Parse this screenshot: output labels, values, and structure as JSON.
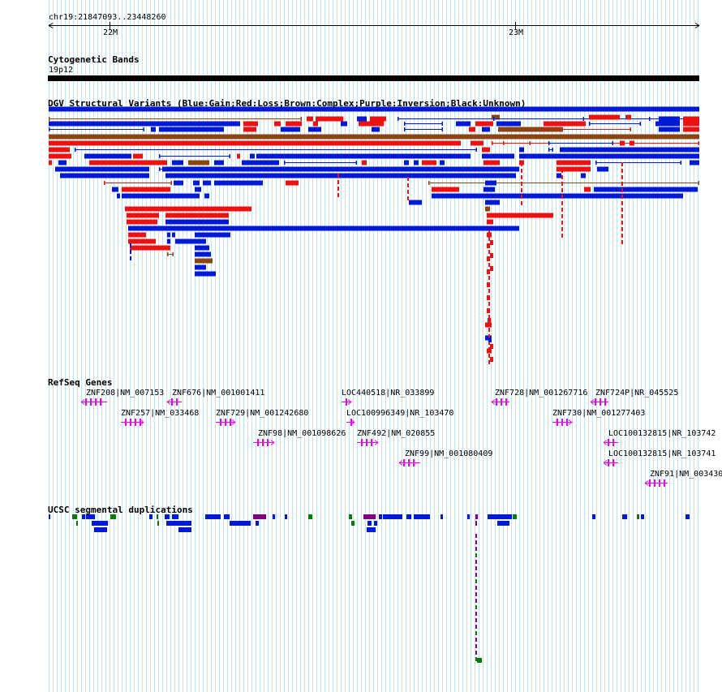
{
  "ruler": {
    "position": "chr19:21847093..23448260",
    "ticks": [
      "22M",
      "23M"
    ]
  },
  "tracks": {
    "cytoband": {
      "title": "Cytogenetic Bands",
      "band": "19p12"
    },
    "dgv": {
      "title": "DGV Structural Variants (Blue:Gain;Red:Loss;Brown:Complex;Purple:Inversion;Black:Unknown)"
    },
    "refseq": {
      "title": "RefSeq Genes",
      "genes": [
        "ZNF208|NM_007153",
        "ZNF676|NM_001001411",
        "LOC440518|NR_033899",
        "ZNF728|NM_001267716",
        "ZNF724P|NR_045525",
        "ZNF257|NM_033468",
        "ZNF729|NM_001242680",
        "LOC100996349|NR_103470",
        "ZNF730|NM_001277403",
        "ZNF98|NM_001098626",
        "ZNF492|NM_020855",
        "LOC100132815|NR_103742",
        "ZNF99|NM_001080409",
        "LOC100132815|NR_103741",
        "ZNF91|NM_003430"
      ]
    },
    "segdups": {
      "title": "UCSC segmental duplications"
    }
  },
  "colors": {
    "gain": "#0019d6",
    "loss": "#ee1111",
    "complex": "#8b4513",
    "inversion": "#800080",
    "gene": "#ee00ee",
    "segdup_green": "#0a7a0a",
    "grid": "#bfe6f0"
  }
}
